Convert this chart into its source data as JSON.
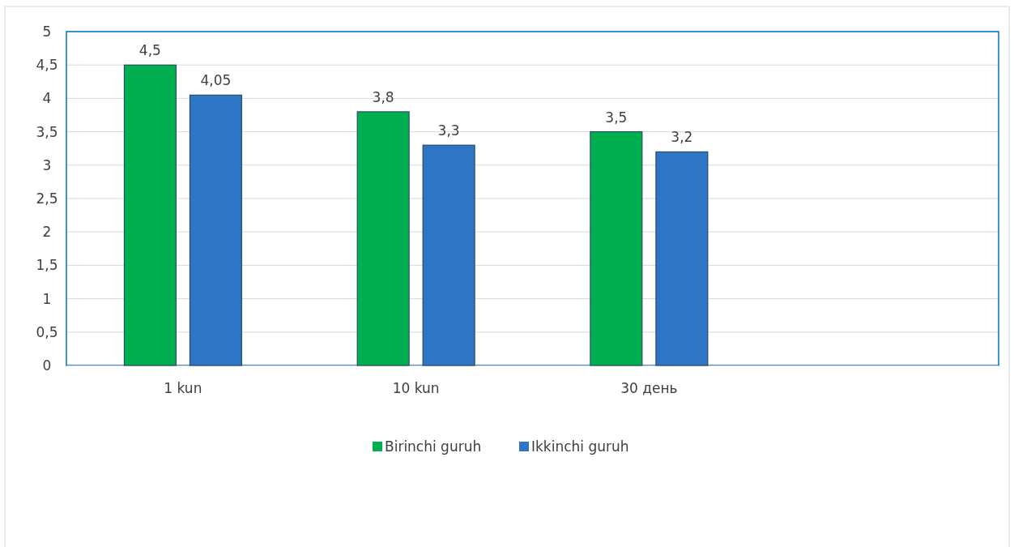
{
  "chart_data": {
    "type": "bar",
    "categories": [
      "1 kun",
      "10 kun",
      "30 день",
      null
    ],
    "series": [
      {
        "name": "Birinchi guruh",
        "color": "#00b050",
        "values": [
          4.5,
          3.8,
          3.5,
          null
        ],
        "value_labels": [
          "4,5",
          "3,8",
          "3,5",
          null
        ]
      },
      {
        "name": "Ikkinchi guruh",
        "color": "#2e75c6",
        "values": [
          4.05,
          3.3,
          3.2,
          null
        ],
        "value_labels": [
          "4,05",
          "3,3",
          "3,2",
          null
        ]
      }
    ],
    "ylim": [
      0,
      5
    ],
    "yticks": [
      0,
      {
        "value": 0.5,
        "label": "0,5"
      },
      1,
      {
        "value": 1.5,
        "label": "1,5"
      },
      2,
      {
        "value": 2.5,
        "label": "2,5"
      },
      3,
      {
        "value": 3.5,
        "label": "3,5"
      },
      4,
      {
        "value": 4.5,
        "label": "4,5"
      },
      5
    ],
    "grid": "y",
    "legend": "bottom"
  }
}
